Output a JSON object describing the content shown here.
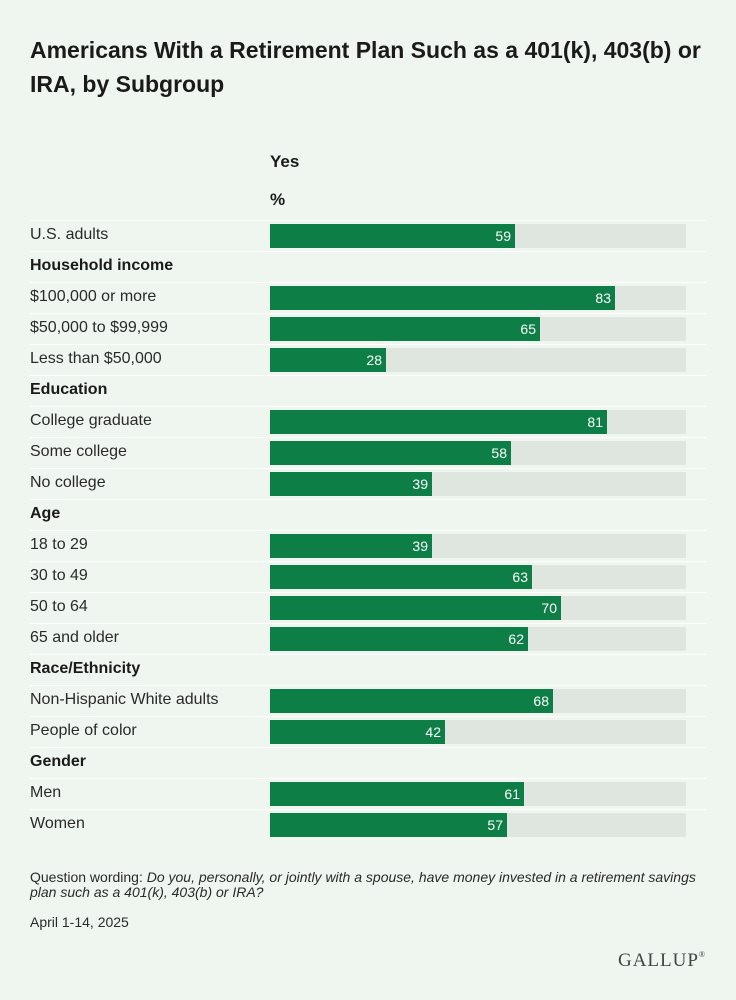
{
  "chart_data": {
    "type": "bar",
    "orientation": "horizontal",
    "title": "Americans With a Retirement Plan Such as a 401(k), 403(b) or IRA, by Subgroup",
    "column_header": "Yes",
    "unit_header": "%",
    "xlim": [
      0,
      100
    ],
    "rows": [
      {
        "label": "U.S. adults",
        "value": 59
      },
      {
        "label": "Household income",
        "group": true
      },
      {
        "label": "$100,000 or more",
        "value": 83
      },
      {
        "label": "$50,000 to $99,999",
        "value": 65
      },
      {
        "label": "Less than $50,000",
        "value": 28
      },
      {
        "label": "Education",
        "group": true
      },
      {
        "label": "College graduate",
        "value": 81
      },
      {
        "label": "Some college",
        "value": 58
      },
      {
        "label": "No college",
        "value": 39
      },
      {
        "label": "Age",
        "group": true
      },
      {
        "label": "18 to 29",
        "value": 39
      },
      {
        "label": "30 to 49",
        "value": 63
      },
      {
        "label": "50 to 64",
        "value": 70
      },
      {
        "label": "65 and older",
        "value": 62
      },
      {
        "label": "Race/Ethnicity",
        "group": true
      },
      {
        "label": "Non-Hispanic White adults",
        "value": 68
      },
      {
        "label": "People of color",
        "value": 42
      },
      {
        "label": "Gender",
        "group": true
      },
      {
        "label": "Men",
        "value": 61
      },
      {
        "label": "Women",
        "value": 57
      }
    ],
    "colors": {
      "bar": "#0c7e46",
      "track": "#dfe5df",
      "background": "#eef6ef"
    }
  },
  "footnote": {
    "prefix": "Question wording: ",
    "question": "Do you, personally, or jointly with a spouse, have money invested in a retirement savings plan such as a 401(k), 403(b) or IRA?"
  },
  "date": "April 1-14, 2025",
  "brand": "GALLUP",
  "brand_mark": "®"
}
